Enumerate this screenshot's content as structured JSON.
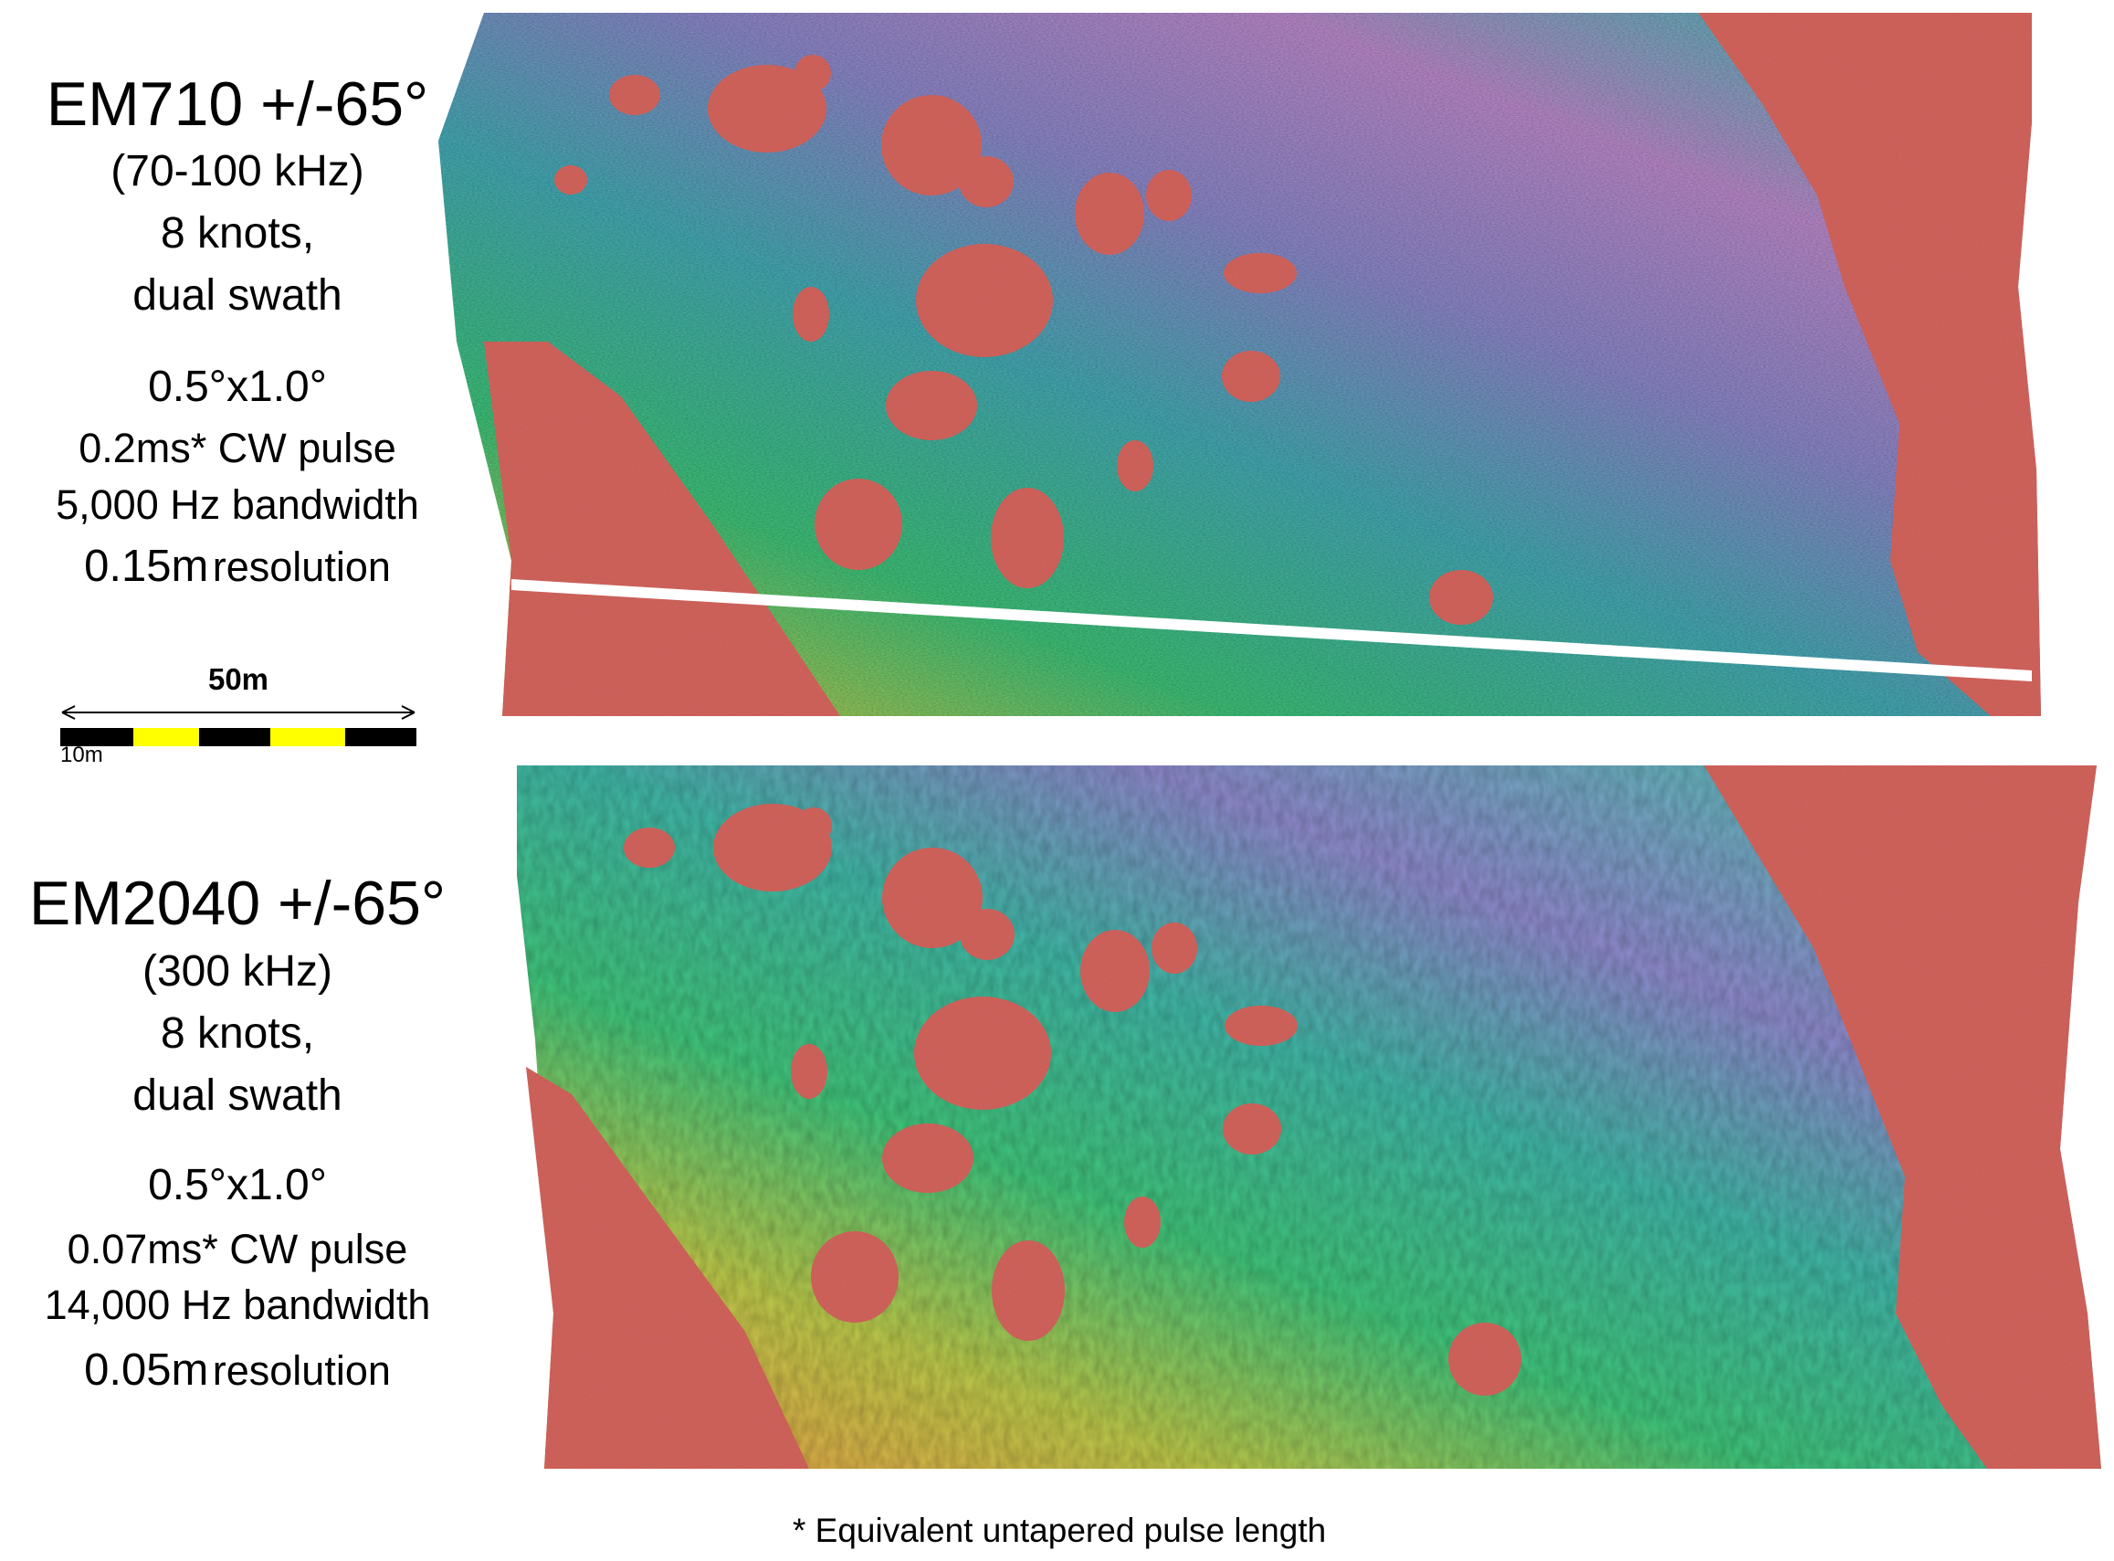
{
  "top_panel": {
    "title": "EM710 +/-65°",
    "frequency": "(70-100 kHz)",
    "speed": "8 knots,",
    "mode": "dual swath",
    "beamwidth": "0.5°x1.0°",
    "pulse": "0.2ms* CW pulse",
    "bandwidth": "5,000 Hz bandwidth",
    "resolution_value": "0.15m",
    "resolution_word": "resolution"
  },
  "bottom_panel": {
    "title": "EM2040 +/-65°",
    "frequency": "(300 kHz)",
    "speed": "8 knots,",
    "mode": "dual swath",
    "beamwidth": "0.5°x1.0°",
    "pulse": "0.07ms* CW pulse",
    "bandwidth": "14,000 Hz bandwidth",
    "resolution_value": "0.05m",
    "resolution_word": "resolution"
  },
  "scale_bar": {
    "total_label": "50m",
    "segment_label": "10m",
    "colors": [
      "#000000",
      "#ffff00",
      "#000000",
      "#ffff00",
      "#000000"
    ]
  },
  "footnote": "* Equivalent untapered pulse length",
  "colors": {
    "rock": "#d4605a",
    "seabed_purple": "#9b80c4",
    "seabed_blue": "#4aa6b0",
    "seabed_green": "#3fbf78",
    "seabed_yellow": "#b7c24a"
  }
}
